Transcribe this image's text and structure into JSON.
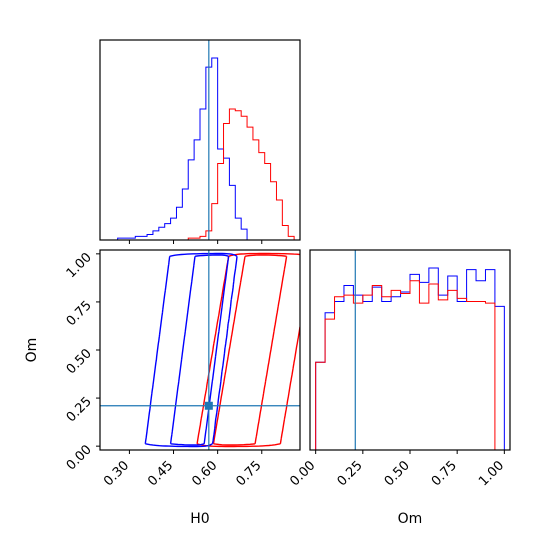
{
  "chart_data": {
    "type": "corner",
    "parameters": [
      "H0",
      "Om"
    ],
    "truth": {
      "H0": 0.57,
      "Om": 0.21,
      "color": "#1f77b4"
    },
    "series": [
      {
        "color": "#0000ff"
      },
      {
        "color": "#ff0000"
      }
    ],
    "panels": [
      {
        "type": "histogram",
        "parameter": "H0",
        "xlim": [
          0.2,
          0.88
        ],
        "bin_edges": [
          0.2,
          0.22,
          0.24,
          0.26,
          0.28,
          0.3,
          0.32,
          0.34,
          0.36,
          0.38,
          0.4,
          0.42,
          0.44,
          0.46,
          0.48,
          0.5,
          0.52,
          0.54,
          0.56,
          0.58,
          0.6,
          0.62,
          0.64,
          0.66,
          0.68,
          0.7,
          0.72,
          0.74,
          0.76,
          0.78,
          0.8,
          0.82,
          0.84,
          0.86,
          0.88
        ],
        "counts": [
          [
            0.0,
            0.0,
            0.0,
            0.01,
            0.01,
            0.01,
            0.02,
            0.02,
            0.03,
            0.05,
            0.07,
            0.09,
            0.12,
            0.18,
            0.28,
            0.44,
            0.55,
            0.72,
            0.95,
            1.0,
            0.5,
            0.45,
            0.3,
            0.12,
            0.06,
            0.0,
            0.0,
            0.0,
            0.0,
            0.0,
            0.0,
            0.0,
            0.0,
            0.0
          ],
          [
            0.0,
            0.0,
            0.0,
            0.0,
            0.0,
            0.0,
            0.0,
            0.0,
            0.0,
            0.0,
            0.0,
            0.0,
            0.0,
            0.0,
            0.0,
            0.01,
            0.01,
            0.02,
            0.05,
            0.2,
            0.42,
            0.64,
            0.72,
            0.71,
            0.68,
            0.62,
            0.55,
            0.48,
            0.42,
            0.32,
            0.22,
            0.08,
            0.02,
            0.0
          ]
        ]
      },
      {
        "type": "contour",
        "x": "H0",
        "y": "Om",
        "xlim": [
          0.2,
          0.88
        ],
        "ylim": [
          -0.02,
          1.02
        ],
        "xticks": [
          "0.30",
          "0.45",
          "0.60",
          "0.75"
        ],
        "yticks": [
          "0.00",
          "0.25",
          "0.50",
          "0.75",
          "1.00"
        ],
        "xlabel": "H0",
        "ylabel": "Om"
      },
      {
        "type": "histogram",
        "parameter": "Om",
        "xlim": [
          -0.03,
          1.03
        ],
        "xticks": [
          "0.00",
          "0.25",
          "0.50",
          "0.75",
          "1.00"
        ],
        "xlabel": "Om",
        "bin_edges": [
          0.0,
          0.05,
          0.1,
          0.15,
          0.2,
          0.25,
          0.3,
          0.35,
          0.4,
          0.45,
          0.5,
          0.55,
          0.6,
          0.65,
          0.7,
          0.75,
          0.8,
          0.85,
          0.9,
          0.95,
          1.0
        ],
        "counts": [
          [
            0.55,
            0.86,
            0.93,
            1.03,
            0.97,
            0.93,
            1.02,
            0.93,
            0.96,
            0.99,
            1.1,
            1.05,
            1.14,
            0.97,
            1.09,
            0.93,
            1.13,
            1.06,
            1.13,
            0.9
          ],
          [
            0.55,
            0.82,
            0.96,
            0.97,
            0.92,
            0.97,
            1.03,
            0.96,
            1.0,
            0.98,
            1.06,
            0.92,
            1.04,
            0.94,
            1.0,
            0.95,
            0.93,
            0.93,
            0.92,
            0.0
          ]
        ]
      }
    ]
  }
}
